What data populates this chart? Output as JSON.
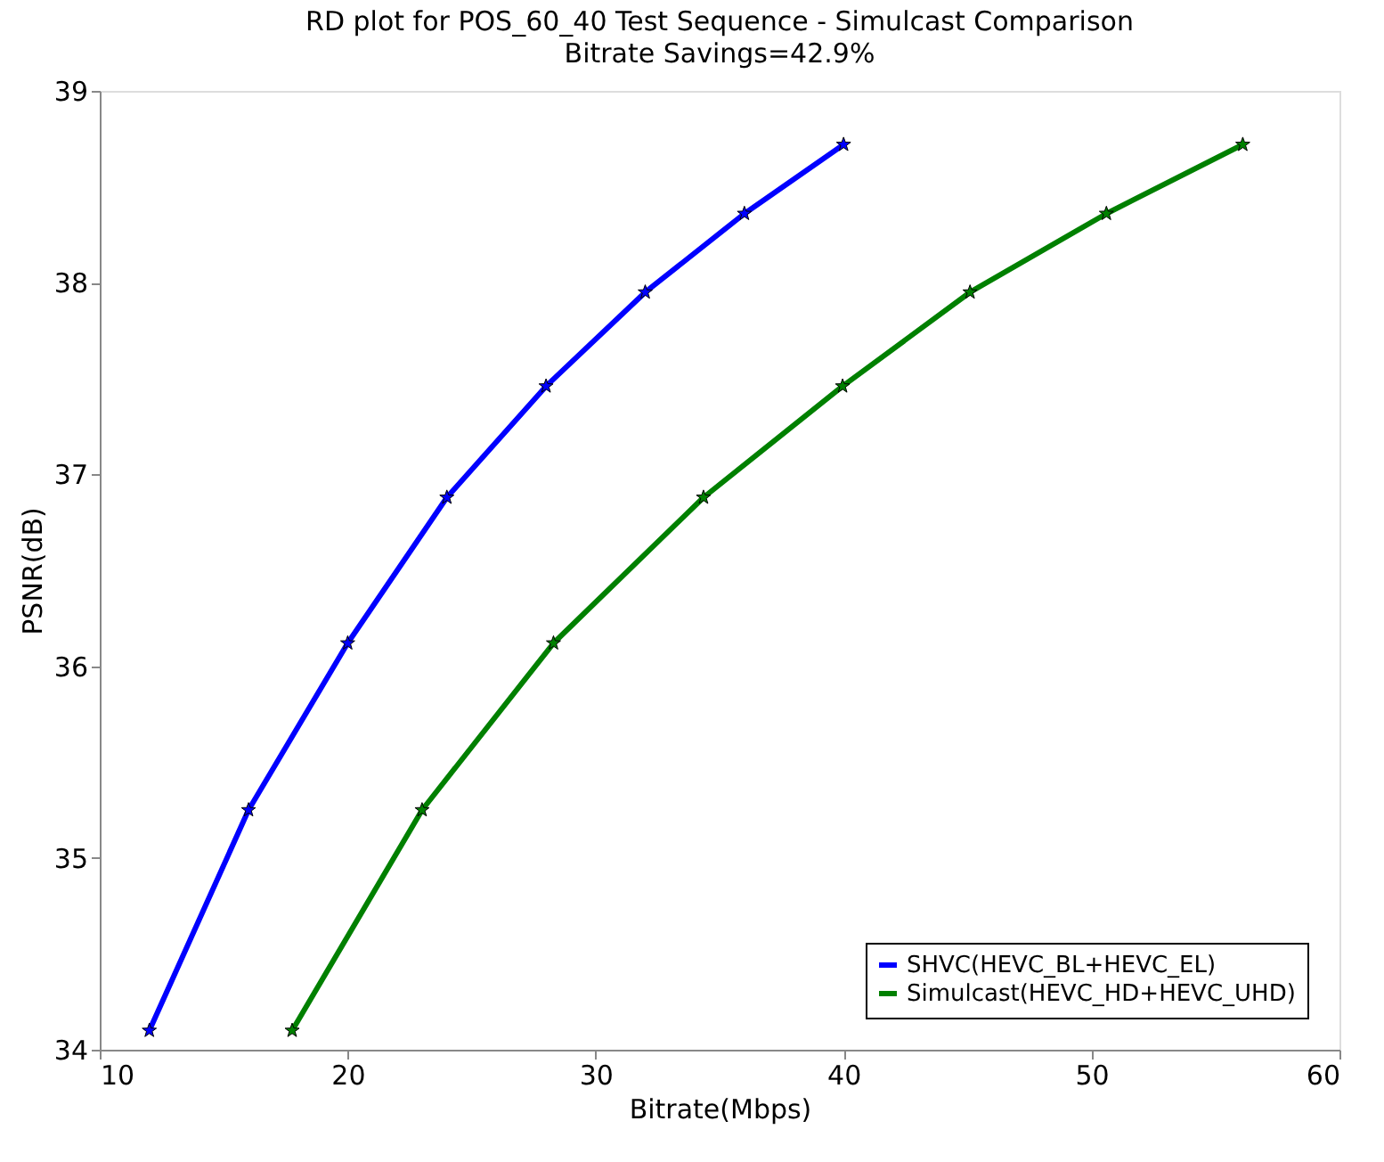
{
  "chart_data": {
    "type": "line",
    "title": "RD plot for POS_60_40 Test Sequence - Simulcast Comparison",
    "subtitle": "Bitrate Savings=42.9%",
    "xlabel": "Bitrate(Mbps)",
    "ylabel": "PSNR(dB)",
    "xlim": [
      10,
      60
    ],
    "xticks": [
      10,
      20,
      30,
      40,
      50,
      60
    ],
    "ylim": [
      34,
      39
    ],
    "yticks": [
      34,
      35,
      36,
      37,
      38,
      39
    ],
    "grid": false,
    "legend": "bottom right",
    "marker": "star",
    "line_style": "solid",
    "series": [
      {
        "name": "SHVC(HEVC_BL+HEVC_EL)",
        "color": "#0000ff",
        "x": [
          12,
          16,
          20,
          24,
          28,
          32,
          36,
          40
        ],
        "values": [
          34.1,
          35.25,
          36.12,
          36.88,
          37.46,
          37.95,
          38.36,
          38.72
        ]
      },
      {
        "name": "Simulcast(HEVC_HD+HEVC_UHD)",
        "color": "#008000",
        "x": [
          17.76,
          23.0,
          28.3,
          34.35,
          39.96,
          45.1,
          50.6,
          56.1
        ],
        "values": [
          34.1,
          35.25,
          36.12,
          36.88,
          37.46,
          37.95,
          38.36,
          38.72
        ]
      }
    ]
  }
}
